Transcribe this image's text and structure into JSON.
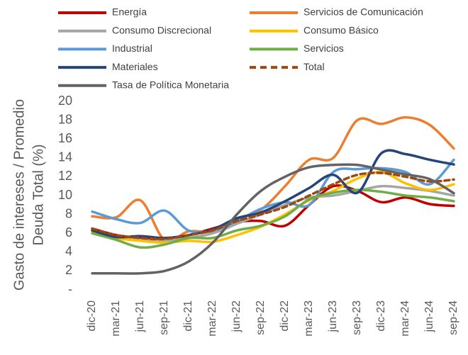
{
  "chart_data": {
    "type": "line",
    "y_axis_label": [
      "Gasto de intereses / Promedio",
      "Deuda Total (%)"
    ],
    "categories": [
      "dic-20",
      "mar-21",
      "jun-21",
      "sep-21",
      "dic-21",
      "mar-22",
      "jun-22",
      "sep-22",
      "dic-22",
      "mar-23",
      "jun-23",
      "sep-23",
      "dic-23",
      "mar-24",
      "jun-24",
      "sep-24"
    ],
    "series": [
      {
        "name": "Energía",
        "color": "#c00000",
        "values": [
          6.5,
          5.8,
          5.5,
          5.3,
          5.8,
          6.5,
          7.2,
          7.3,
          6.8,
          9,
          11,
          10.5,
          9.3,
          9.8,
          9.1,
          8.9
        ]
      },
      {
        "name": "Servicios de Comunicación",
        "color": "#ed7d31",
        "values": [
          7.8,
          7.7,
          9.5,
          5.3,
          6.2,
          6.2,
          7.5,
          8.5,
          11,
          13.8,
          14,
          18,
          17.6,
          18.3,
          17.5,
          15
        ]
      },
      {
        "name": "Consumo Discrecional",
        "color": "#a5a5a5",
        "values": [
          6.3,
          5.6,
          5.3,
          5.2,
          5.5,
          6,
          7,
          8,
          9,
          9.8,
          10,
          10.5,
          11,
          10.8,
          10.5,
          10
        ]
      },
      {
        "name": "Consumo Básico",
        "color": "#ffc000",
        "values": [
          6.2,
          5.5,
          5.2,
          5,
          5.2,
          5.1,
          5.8,
          6.7,
          8,
          9.5,
          10.5,
          11.8,
          12.5,
          11.3,
          10.6,
          11.2
        ]
      },
      {
        "name": "Industrial",
        "color": "#5b9bd5",
        "values": [
          8.3,
          7.5,
          7.1,
          8.4,
          6.3,
          6.3,
          7.3,
          8.6,
          9.3,
          9,
          12.5,
          12.8,
          12.9,
          12.5,
          11.2,
          13.8
        ]
      },
      {
        "name": "Servicios",
        "color": "#70ad47",
        "values": [
          6,
          5.3,
          4.5,
          4.8,
          5.5,
          5.5,
          6.3,
          6.8,
          7.8,
          9.6,
          10.3,
          10.6,
          10.4,
          10,
          9.8,
          9.4
        ]
      },
      {
        "name": "Materiales",
        "color": "#264478",
        "values": [
          6.3,
          5.6,
          5.7,
          5.5,
          5.8,
          6.4,
          7.6,
          8.2,
          9.4,
          10.8,
          12.2,
          10.3,
          14.5,
          14.4,
          13.8,
          13.3
        ]
      },
      {
        "name": "Total",
        "color": "#9e480e",
        "dashed": true,
        "values": [
          6.5,
          5.8,
          5.5,
          5.4,
          5.8,
          6.3,
          7.3,
          8,
          8.8,
          10,
          11.2,
          12.2,
          12.4,
          12,
          11.5,
          11.7
        ]
      },
      {
        "name": "Tasa de Política Monetaria",
        "color": "#636363",
        "values": [
          1.75,
          1.75,
          1.75,
          2,
          3,
          5,
          8,
          10.5,
          12,
          13,
          13.25,
          13.25,
          12.75,
          12.25,
          11.75,
          10.25
        ]
      }
    ],
    "ylim": [
      0,
      20
    ],
    "yticks": [
      {
        "value": 0,
        "label": "-"
      },
      2,
      4,
      6,
      8,
      10,
      12,
      14,
      16,
      18,
      20
    ],
    "grid": false
  }
}
